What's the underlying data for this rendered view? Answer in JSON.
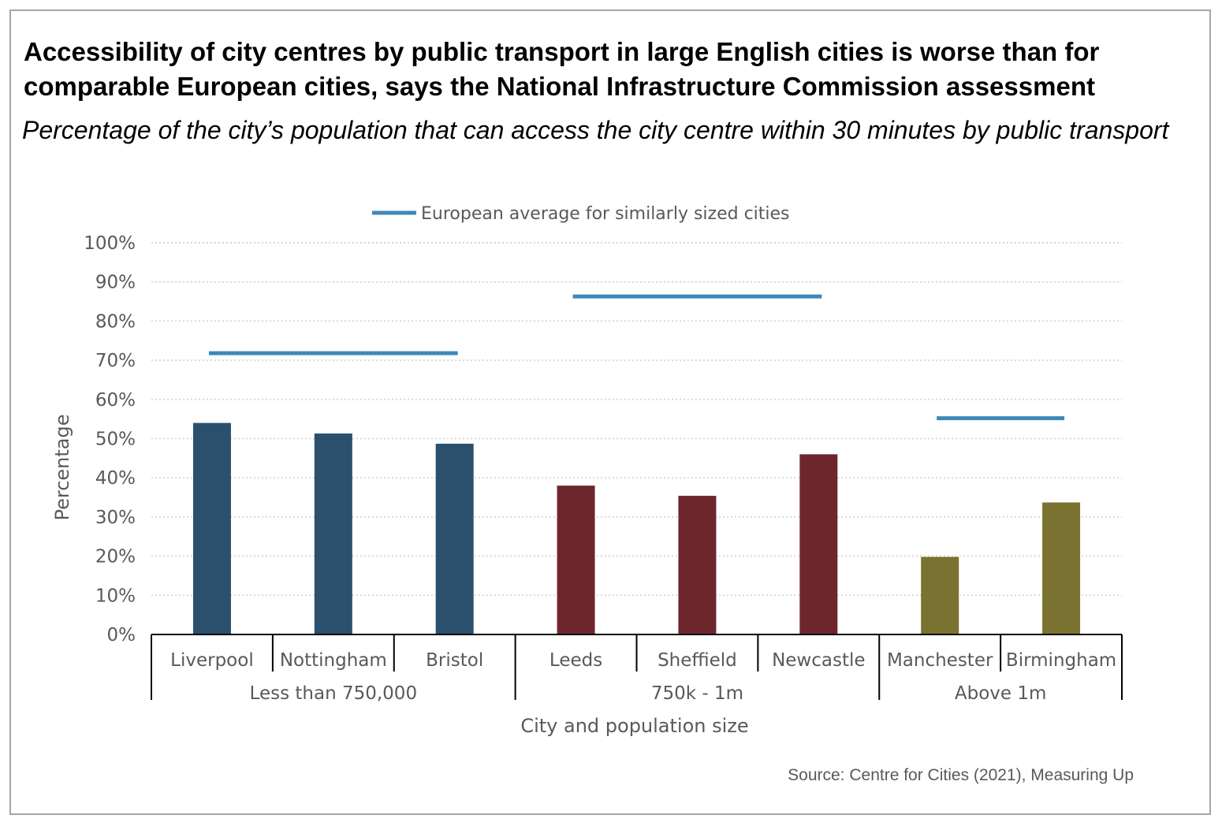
{
  "title": "Accessibility of city centres by public transport in large English cities is worse than for comparable European cities, says the National Infrastructure Commission assessment",
  "subtitle": "Percentage of the city’s population that can access the city centre within 30 minutes by public transport",
  "source": "Source: Centre for Cities (2021), Measuring Up",
  "colors": {
    "small": "#2a506e",
    "medium": "#6e262d",
    "large": "#7a7230",
    "europe_line": "#3d88bb",
    "grid": "#d9d9d9",
    "axis": "#000000"
  },
  "chart_data": {
    "type": "bar",
    "xlabel": "City and population size",
    "ylabel": "Percentage",
    "ylim": [
      0,
      100
    ],
    "yticks": [
      "0%",
      "10%",
      "20%",
      "30%",
      "40%",
      "50%",
      "60%",
      "70%",
      "80%",
      "90%",
      "100%"
    ],
    "legend": {
      "label": "European average for similarly sized cities",
      "position": "top"
    },
    "categories": [
      "Liverpool",
      "Nottingham",
      "Bristol",
      "Leeds",
      "Sheffield",
      "Newcastle",
      "Manchester",
      "Birmingham"
    ],
    "values": [
      54,
      51.3,
      48.7,
      38,
      35.4,
      46,
      19.8,
      33.7
    ],
    "groups": [
      {
        "label": "Less than 750,000",
        "categories": [
          "Liverpool",
          "Nottingham",
          "Bristol"
        ],
        "color_key": "small",
        "european_average": 71.8
      },
      {
        "label": "750k - 1m",
        "categories": [
          "Leeds",
          "Sheffield",
          "Newcastle"
        ],
        "color_key": "medium",
        "european_average": 86.3
      },
      {
        "label": "Above 1m",
        "categories": [
          "Manchester",
          "Birmingham"
        ],
        "color_key": "large",
        "european_average": 55.2
      }
    ],
    "grid": true
  }
}
